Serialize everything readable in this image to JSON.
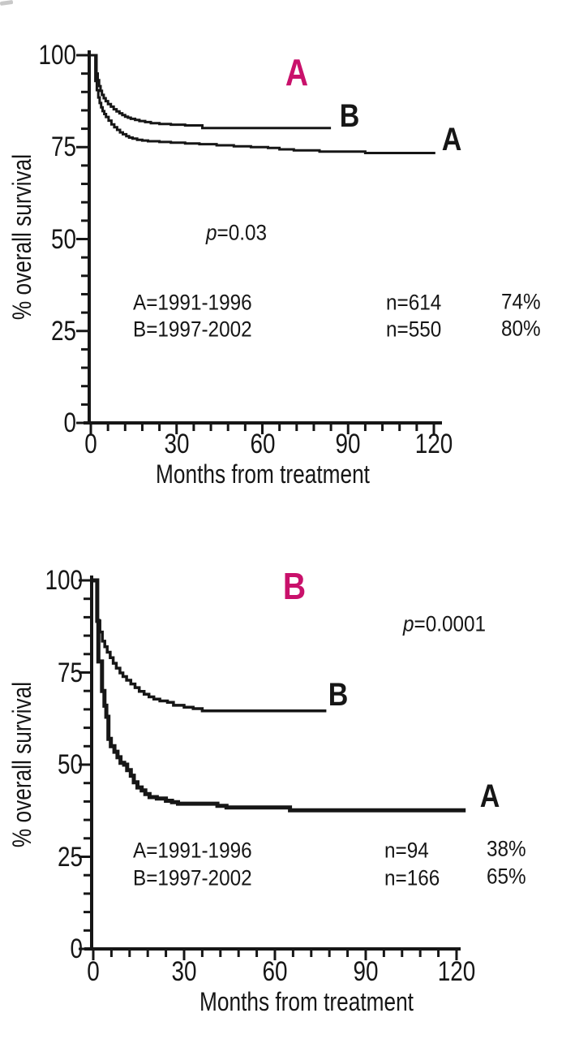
{
  "figure": {
    "background": "#ffffff",
    "ink_color": "#161616",
    "accent_color": "#c9116b"
  },
  "chart_data": [
    {
      "type": "line",
      "subtype": "kaplan-meier-step-curve",
      "panel_label": "A",
      "p_var": "p",
      "p_rest": "=0.03",
      "title": "",
      "xlabel": "Months from treatment",
      "ylabel": "% overall survival",
      "xlim": [
        0,
        120
      ],
      "ylim": [
        0,
        100
      ],
      "xticks": [
        "0",
        "30",
        "60",
        "90",
        "120"
      ],
      "yticks": [
        "0",
        "25",
        "50",
        "75",
        "100"
      ],
      "x_minor_step": 6,
      "y_minor_step": 5,
      "grid": false,
      "legend_position": "inside-lower-left",
      "legend_rows": [
        {
          "group": "A=1991-1996",
          "n": "n=614",
          "pct": "74%"
        },
        {
          "group": "B=1997-2002",
          "n": "n=550",
          "pct": "80%"
        }
      ],
      "series": [
        {
          "name": "A (1991-1996)",
          "curve_label": "A",
          "end_month": 120.5,
          "steps": [
            [
              0,
              100
            ],
            [
              1.6,
              93
            ],
            [
              2.1,
              90.5
            ],
            [
              2.6,
              88.5
            ],
            [
              3.1,
              87
            ],
            [
              3.6,
              85.8
            ],
            [
              4.1,
              84.8
            ],
            [
              4.7,
              84
            ],
            [
              5.3,
              83.2
            ],
            [
              6.2,
              82.2
            ],
            [
              7.2,
              81.2
            ],
            [
              8.2,
              80.4
            ],
            [
              9.2,
              79.7
            ],
            [
              10.2,
              79
            ],
            [
              11.2,
              78.5
            ],
            [
              12.4,
              78
            ],
            [
              13.4,
              77.6
            ],
            [
              14.6,
              77.3
            ],
            [
              16.2,
              77
            ],
            [
              18,
              76.8
            ],
            [
              20,
              76.6
            ],
            [
              24,
              76.4
            ],
            [
              28,
              76.2
            ],
            [
              33,
              76
            ],
            [
              38,
              75.8
            ],
            [
              44,
              75.5
            ],
            [
              50,
              75.2
            ],
            [
              56,
              75
            ],
            [
              62,
              74.8
            ],
            [
              66,
              74.4
            ],
            [
              71,
              74.1
            ],
            [
              80,
              73.8
            ],
            [
              96,
              73.4
            ]
          ]
        },
        {
          "name": "B (1997-2002)",
          "curve_label": "B",
          "end_month": 84,
          "steps": [
            [
              0,
              100
            ],
            [
              2,
              95
            ],
            [
              2.4,
              93.2
            ],
            [
              2.9,
              91.6
            ],
            [
              3.4,
              90.3
            ],
            [
              3.9,
              89.2
            ],
            [
              4.5,
              88.3
            ],
            [
              5.2,
              87.5
            ],
            [
              6,
              86.7
            ],
            [
              7,
              86
            ],
            [
              8,
              85.3
            ],
            [
              9,
              84.7
            ],
            [
              10,
              84.2
            ],
            [
              11,
              83.7
            ],
            [
              12,
              83.3
            ],
            [
              13,
              83
            ],
            [
              14,
              82.7
            ],
            [
              15.5,
              82.4
            ],
            [
              17,
              82.1
            ],
            [
              19,
              81.8
            ],
            [
              21,
              81.5
            ],
            [
              24,
              81.3
            ],
            [
              28,
              81.1
            ],
            [
              33,
              80.9
            ],
            [
              39,
              80.2
            ]
          ]
        }
      ]
    },
    {
      "type": "line",
      "subtype": "kaplan-meier-step-curve",
      "panel_label": "B",
      "p_var": "p",
      "p_rest": "=0.0001",
      "title": "",
      "xlabel": "Months from treatment",
      "ylabel": "% overall survival",
      "xlim": [
        0,
        120
      ],
      "ylim": [
        0,
        100
      ],
      "xticks": [
        "0",
        "30",
        "60",
        "90",
        "120"
      ],
      "yticks": [
        "0",
        "25",
        "50",
        "75",
        "100"
      ],
      "x_minor_step": 6,
      "y_minor_step": 5,
      "grid": false,
      "legend_position": "inside-lower-left",
      "legend_rows": [
        {
          "group": "A=1991-1996",
          "n": "n=94",
          "pct": "38%"
        },
        {
          "group": "B=1997-2002",
          "n": "n=166",
          "pct": "65%"
        }
      ],
      "series": [
        {
          "name": "A (1991-1996)",
          "curve_label": "A",
          "end_month": 123,
          "steps": [
            [
              0,
              100
            ],
            [
              1.3,
              89
            ],
            [
              1.7,
              78
            ],
            [
              2.9,
              70
            ],
            [
              3.7,
              66
            ],
            [
              4.3,
              63
            ],
            [
              5,
              57
            ],
            [
              5.8,
              55
            ],
            [
              7,
              53.5
            ],
            [
              8,
              52
            ],
            [
              9,
              50.5
            ],
            [
              10.2,
              50
            ],
            [
              11.2,
              48.5
            ],
            [
              12.4,
              47
            ],
            [
              13.4,
              45.2
            ],
            [
              14.6,
              43.8
            ],
            [
              16,
              43
            ],
            [
              17.2,
              42
            ],
            [
              18.6,
              41.2
            ],
            [
              21,
              40.8
            ],
            [
              24,
              40.2
            ],
            [
              26,
              39.8
            ],
            [
              28,
              39.4
            ],
            [
              41,
              38.8
            ],
            [
              44,
              38.4
            ],
            [
              65,
              37.6
            ]
          ]
        },
        {
          "name": "B (1997-2002)",
          "curve_label": "B",
          "end_month": 77,
          "steps": [
            [
              0,
              100
            ],
            [
              1.3,
              89
            ],
            [
              2.2,
              86
            ],
            [
              3,
              83.5
            ],
            [
              3.8,
              82
            ],
            [
              4.6,
              80.5
            ],
            [
              5.6,
              79
            ],
            [
              6.6,
              77.5
            ],
            [
              7.6,
              76.2
            ],
            [
              8.8,
              74.9
            ],
            [
              9.8,
              73.9
            ],
            [
              11,
              72.9
            ],
            [
              12.4,
              71.9
            ],
            [
              13.8,
              70.9
            ],
            [
              15.2,
              69.9
            ],
            [
              16.8,
              69.1
            ],
            [
              18.4,
              68.4
            ],
            [
              20,
              67.8
            ],
            [
              22,
              67.3
            ],
            [
              24.5,
              66.9
            ],
            [
              26.5,
              66.1
            ],
            [
              30,
              65.6
            ],
            [
              33,
              65.2
            ],
            [
              36,
              64.6
            ]
          ]
        }
      ]
    }
  ]
}
